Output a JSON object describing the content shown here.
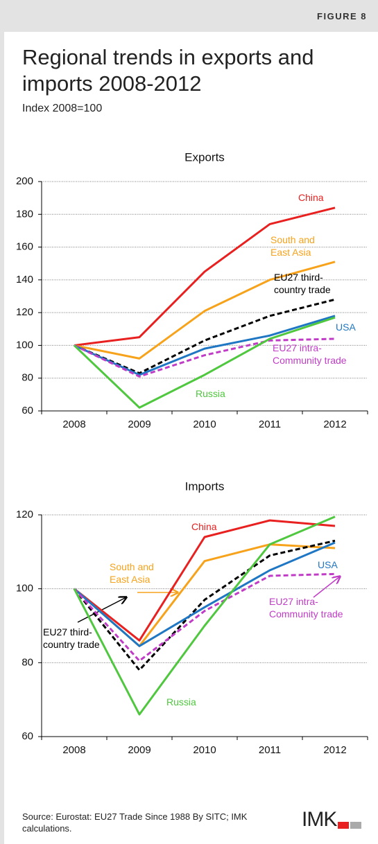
{
  "figure_label": "FIGURE 8",
  "title": "Regional trends in exports and imports 2008-2012",
  "subtitle": "Index 2008=100",
  "chart_data": [
    {
      "type": "line",
      "title": "Exports",
      "categories": [
        "2008",
        "2009",
        "2010",
        "2011",
        "2012"
      ],
      "ylim": [
        60,
        200
      ],
      "yticks": [
        60,
        80,
        100,
        120,
        140,
        160,
        180,
        200
      ],
      "grid": true,
      "series": [
        {
          "name": "China",
          "color": "#e8201f",
          "dashed": false,
          "values": [
            100,
            105,
            145,
            174,
            184
          ]
        },
        {
          "name": "South and East Asia",
          "color": "#f7a21b",
          "dashed": false,
          "values": [
            100,
            92,
            121,
            140,
            151
          ]
        },
        {
          "name": "EU27 third-country trade",
          "color": "#000000",
          "dashed": true,
          "values": [
            100,
            83,
            103,
            118,
            128
          ]
        },
        {
          "name": "USA",
          "color": "#1f77c4",
          "dashed": false,
          "values": [
            100,
            82,
            98,
            106,
            118
          ]
        },
        {
          "name": "EU27 intra-Community trade",
          "color": "#c03cc6",
          "dashed": true,
          "values": [
            100,
            81,
            94,
            103,
            104
          ]
        },
        {
          "name": "Russia",
          "color": "#4fc73e",
          "dashed": false,
          "values": [
            100,
            62,
            82,
            104,
            117
          ]
        }
      ]
    },
    {
      "type": "line",
      "title": "Imports",
      "categories": [
        "2008",
        "2009",
        "2010",
        "2011",
        "2012"
      ],
      "ylim": [
        60,
        120
      ],
      "yticks": [
        60,
        80,
        100,
        120
      ],
      "grid": true,
      "series": [
        {
          "name": "China",
          "color": "#e8201f",
          "dashed": false,
          "values": [
            100,
            86,
            114,
            118.5,
            117
          ]
        },
        {
          "name": "South and East Asia",
          "color": "#f7a21b",
          "dashed": false,
          "values": [
            100,
            84.5,
            107.5,
            112,
            111
          ]
        },
        {
          "name": "EU27 third-country trade",
          "color": "#000000",
          "dashed": true,
          "values": [
            100,
            78,
            97,
            109,
            113
          ]
        },
        {
          "name": "USA",
          "color": "#1f77c4",
          "dashed": false,
          "values": [
            100,
            84.5,
            95,
            105,
            112.5
          ]
        },
        {
          "name": "EU27 intra-Community trade",
          "color": "#c03cc6",
          "dashed": true,
          "values": [
            100,
            80.5,
            94,
            103.5,
            104
          ]
        },
        {
          "name": "Russia",
          "color": "#4fc73e",
          "dashed": false,
          "values": [
            100,
            66,
            90,
            112,
            119.5
          ]
        }
      ]
    }
  ],
  "source": "Source: Eurostat: EU27 Trade Since 1988 By SITC; IMK calculations.",
  "logo": "IMK"
}
